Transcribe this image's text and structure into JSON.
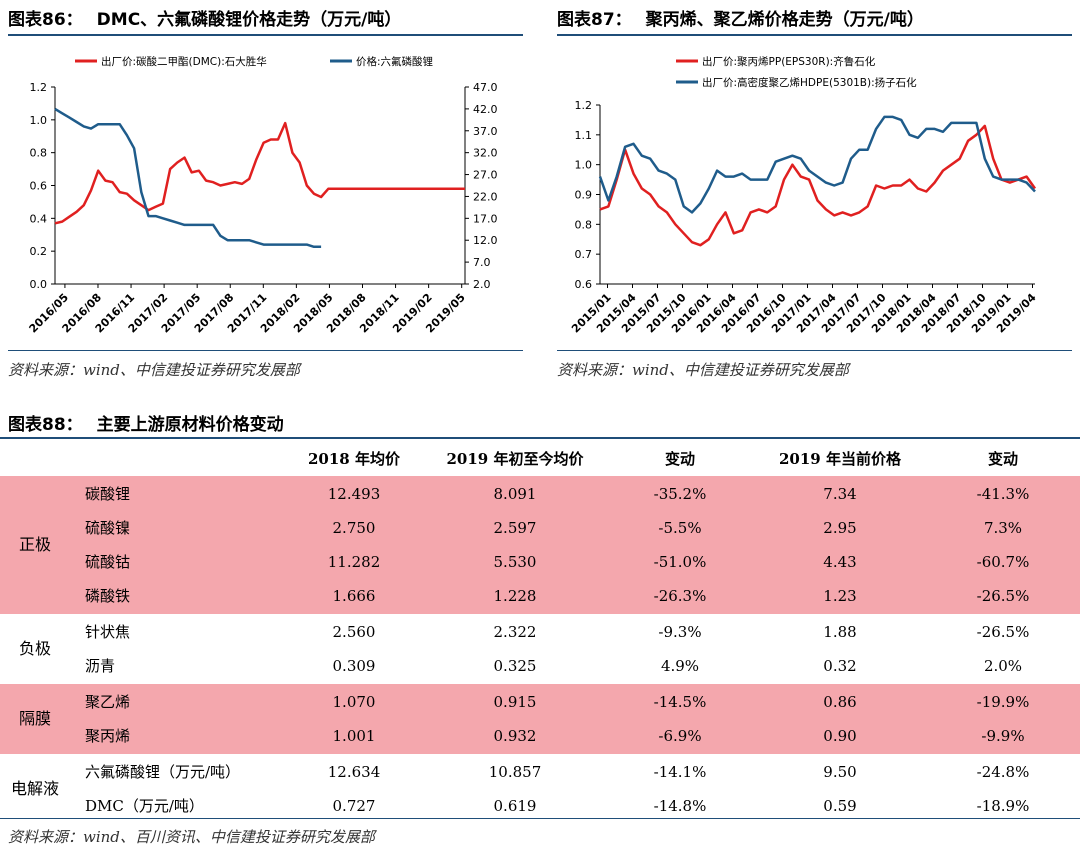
{
  "fig86": {
    "label": "图表86：",
    "title": "DMC、六氟磷酸锂价格走势（万元/吨）"
  },
  "fig87": {
    "label": "图表87：",
    "title": "聚丙烯、聚乙烯价格走势（万元/吨）"
  },
  "fig88": {
    "label": "图表88：",
    "title": "主要上游原材料价格变动"
  },
  "source_top": "资料来源：wind、中信建投证券研究发展部",
  "source_bottom": "资料来源：wind、百川资讯、中信建投证券研究发展部",
  "colors": {
    "red": "#e02020",
    "blue": "#1f5c8b",
    "band": "#f4a7ad",
    "rule": "#1f4e79"
  },
  "chart_data": [
    {
      "type": "line",
      "title": "DMC、六氟磷酸锂价格走势（万元/吨）",
      "x_tick_labels": [
        "2016/05",
        "2016/08",
        "2016/11",
        "2017/02",
        "2017/05",
        "2017/08",
        "2017/11",
        "2018/02",
        "2018/05",
        "2018/08",
        "2018/11",
        "2019/02",
        "2019/05"
      ],
      "y_left": {
        "min": 0.0,
        "max": 1.2,
        "ticks": [
          "0.0",
          "0.2",
          "0.4",
          "0.6",
          "0.8",
          "1.0",
          "1.2"
        ]
      },
      "y_right": {
        "min": 2.0,
        "max": 47.0,
        "ticks": [
          "2.0",
          "7.0",
          "12.0",
          "17.0",
          "22.0",
          "27.0",
          "32.0",
          "37.0",
          "42.0",
          "47.0"
        ]
      },
      "legend_position": "top",
      "series": [
        {
          "name": "出厂价:碳酸二甲酯(DMC):石大胜华",
          "axis": "left",
          "color": "red",
          "x": [
            0,
            1,
            2,
            3,
            4,
            5,
            6,
            7,
            8,
            9,
            10,
            11,
            12,
            13,
            14,
            15,
            16,
            17,
            18,
            19,
            20,
            21,
            22,
            23,
            24,
            25,
            26,
            27,
            28,
            29,
            30,
            31,
            32,
            33,
            34,
            35,
            36,
            37,
            38,
            39,
            40,
            41,
            42,
            43,
            44,
            45,
            46,
            47,
            48,
            49,
            50,
            51,
            52,
            53,
            54,
            55,
            56,
            57
          ],
          "y": [
            0.37,
            0.38,
            0.41,
            0.44,
            0.48,
            0.57,
            0.69,
            0.63,
            0.62,
            0.56,
            0.55,
            0.51,
            0.48,
            0.45,
            0.47,
            0.49,
            0.7,
            0.74,
            0.77,
            0.68,
            0.69,
            0.63,
            0.62,
            0.6,
            0.61,
            0.62,
            0.61,
            0.64,
            0.76,
            0.86,
            0.88,
            0.88,
            0.98,
            0.8,
            0.74,
            0.6,
            0.55,
            0.53,
            0.58,
            0.58,
            0.58,
            0.58,
            0.58,
            0.58,
            0.58,
            0.58,
            0.58,
            0.58,
            0.58,
            0.58,
            0.58,
            0.58,
            0.58,
            0.58,
            0.58,
            0.58,
            0.58,
            0.58
          ]
        },
        {
          "name": "价格:六氟磷酸锂",
          "axis": "right",
          "color": "blue",
          "x": [
            0,
            1,
            2,
            3,
            4,
            5,
            6,
            7,
            8,
            9,
            10,
            11,
            12,
            13,
            14,
            15,
            16,
            17,
            18,
            19,
            20,
            21,
            22,
            23,
            24,
            25,
            26,
            27,
            28,
            29,
            30,
            31,
            32,
            33,
            34,
            35,
            36,
            37
          ],
          "y": [
            42.0,
            41.0,
            40.0,
            39.0,
            38.0,
            37.5,
            38.5,
            38.5,
            38.5,
            38.5,
            36.0,
            33.0,
            23.0,
            17.5,
            17.5,
            17.0,
            16.5,
            16.0,
            15.5,
            15.5,
            15.5,
            15.5,
            15.5,
            13.0,
            12.0,
            12.0,
            12.0,
            12.0,
            11.5,
            11.0,
            11.0,
            11.0,
            11.0,
            11.0,
            11.0,
            11.0,
            10.5,
            10.5
          ]
        }
      ]
    },
    {
      "type": "line",
      "title": "聚丙烯、聚乙烯价格走势（万元/吨）",
      "x_tick_labels": [
        "2015/01",
        "2015/04",
        "2015/07",
        "2015/10",
        "2016/01",
        "2016/04",
        "2016/07",
        "2016/10",
        "2017/01",
        "2017/04",
        "2017/07",
        "2017/10",
        "2018/01",
        "2018/04",
        "2018/07",
        "2018/10",
        "2019/01",
        "2019/04"
      ],
      "y_left": {
        "min": 0.6,
        "max": 1.2,
        "ticks": [
          "0.6",
          "0.7",
          "0.8",
          "0.9",
          "1.0",
          "1.1",
          "1.2"
        ]
      },
      "legend_position": "top-left",
      "series": [
        {
          "name": "出厂价:聚丙烯PP(EPS30R):齐鲁石化",
          "axis": "left",
          "color": "red",
          "x": [
            0,
            1,
            2,
            3,
            4,
            5,
            6,
            7,
            8,
            9,
            10,
            11,
            12,
            13,
            14,
            15,
            16,
            17,
            18,
            19,
            20,
            21,
            22,
            23,
            24,
            25,
            26,
            27,
            28,
            29,
            30,
            31,
            32,
            33,
            34,
            35,
            36,
            37,
            38,
            39,
            40,
            41,
            42,
            43,
            44,
            45,
            46,
            47,
            48,
            49,
            50,
            51,
            52
          ],
          "y": [
            0.85,
            0.86,
            0.95,
            1.05,
            0.97,
            0.92,
            0.9,
            0.86,
            0.84,
            0.8,
            0.77,
            0.74,
            0.73,
            0.75,
            0.8,
            0.84,
            0.77,
            0.78,
            0.84,
            0.85,
            0.84,
            0.86,
            0.95,
            1.0,
            0.96,
            0.95,
            0.88,
            0.85,
            0.83,
            0.84,
            0.83,
            0.84,
            0.86,
            0.93,
            0.92,
            0.93,
            0.93,
            0.95,
            0.92,
            0.91,
            0.94,
            0.98,
            1.0,
            1.02,
            1.08,
            1.1,
            1.13,
            1.02,
            0.95,
            0.94,
            0.95,
            0.96,
            0.92
          ]
        },
        {
          "name": "出厂价:高密度聚乙烯HDPE(5301B):扬子石化",
          "axis": "left",
          "color": "blue",
          "x": [
            0,
            1,
            2,
            3,
            4,
            5,
            6,
            7,
            8,
            9,
            10,
            11,
            12,
            13,
            14,
            15,
            16,
            17,
            18,
            19,
            20,
            21,
            22,
            23,
            24,
            25,
            26,
            27,
            28,
            29,
            30,
            31,
            32,
            33,
            34,
            35,
            36,
            37,
            38,
            39,
            40,
            41,
            42,
            43,
            44,
            45,
            46,
            47,
            48,
            49,
            50,
            51,
            52
          ],
          "y": [
            0.96,
            0.88,
            0.96,
            1.06,
            1.07,
            1.03,
            1.02,
            0.98,
            0.97,
            0.95,
            0.86,
            0.84,
            0.87,
            0.92,
            0.98,
            0.96,
            0.96,
            0.97,
            0.95,
            0.95,
            0.95,
            1.01,
            1.02,
            1.03,
            1.02,
            0.98,
            0.96,
            0.94,
            0.93,
            0.94,
            1.02,
            1.05,
            1.05,
            1.12,
            1.16,
            1.16,
            1.15,
            1.1,
            1.09,
            1.12,
            1.12,
            1.11,
            1.14,
            1.14,
            1.14,
            1.14,
            1.02,
            0.96,
            0.95,
            0.95,
            0.95,
            0.94,
            0.91
          ]
        }
      ]
    },
    {
      "type": "table",
      "title": "主要上游原材料价格变动",
      "columns": [
        "",
        "",
        "2018 年均价",
        "2019 年初至今均价",
        "变动",
        "2019 年当前价格",
        "变动"
      ],
      "groups": [
        {
          "name": "正极",
          "highlight": true,
          "rows": [
            [
              "碳酸锂",
              "12.493",
              "8.091",
              "-35.2%",
              "7.34",
              "-41.3%"
            ],
            [
              "硫酸镍",
              "2.750",
              "2.597",
              "-5.5%",
              "2.95",
              "7.3%"
            ],
            [
              "硫酸钴",
              "11.282",
              "5.530",
              "-51.0%",
              "4.43",
              "-60.7%"
            ],
            [
              "磷酸铁",
              "1.666",
              "1.228",
              "-26.3%",
              "1.23",
              "-26.5%"
            ]
          ]
        },
        {
          "name": "负极",
          "highlight": false,
          "rows": [
            [
              "针状焦",
              "2.560",
              "2.322",
              "-9.3%",
              "1.88",
              "-26.5%"
            ],
            [
              "沥青",
              "0.309",
              "0.325",
              "4.9%",
              "0.32",
              "2.0%"
            ]
          ]
        },
        {
          "name": "隔膜",
          "highlight": true,
          "rows": [
            [
              "聚乙烯",
              "1.070",
              "0.915",
              "-14.5%",
              "0.86",
              "-19.9%"
            ],
            [
              "聚丙烯",
              "1.001",
              "0.932",
              "-6.9%",
              "0.90",
              "-9.9%"
            ]
          ]
        },
        {
          "name": "电解液",
          "highlight": false,
          "rows": [
            [
              "六氟磷酸锂（万元/吨）",
              "12.634",
              "10.857",
              "-14.1%",
              "9.50",
              "-24.8%"
            ],
            [
              "DMC（万元/吨）",
              "0.727",
              "0.619",
              "-14.8%",
              "0.59",
              "-18.9%"
            ]
          ]
        }
      ]
    }
  ]
}
